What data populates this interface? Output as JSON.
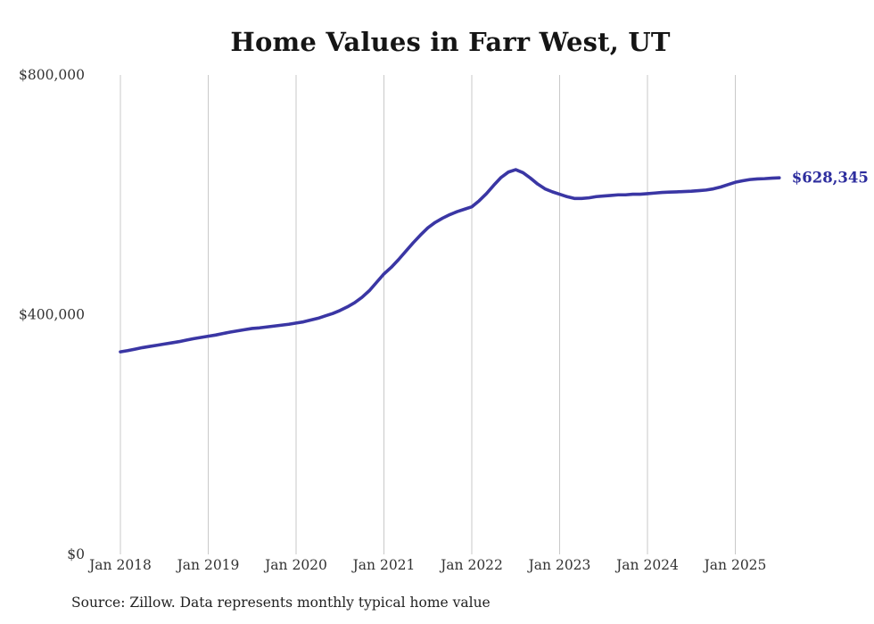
{
  "title": "Home Values in Farr West, UT",
  "source_note": "Source: Zillow. Data represents monthly typical home value",
  "colors": {
    "line": "#3a36a4",
    "end_label": "#2d2d9e",
    "grid": "#c9c9c9",
    "axis_text": "#333333",
    "title_text": "#151515",
    "background": "#ffffff"
  },
  "chart_data": {
    "type": "line",
    "title": "Home Values in Farr West, UT",
    "xlabel": "",
    "ylabel": "",
    "legend": "none",
    "grid": "vertical-yearly",
    "ylim": [
      0,
      800000
    ],
    "y_ticks": [
      {
        "value": 0,
        "label": "$0"
      },
      {
        "value": 400000,
        "label": "$400,000"
      },
      {
        "value": 800000,
        "label": "$800,000"
      }
    ],
    "x_tick_labels": [
      "Jan 2018",
      "Jan 2019",
      "Jan 2020",
      "Jan 2021",
      "Jan 2022",
      "Jan 2023",
      "Jan 2024",
      "Jan 2025"
    ],
    "series_name": "Typical home value (monthly)",
    "x_start_month": "Jan 2018",
    "x_end_month": "Jul 2025",
    "values": [
      338000,
      340000,
      342500,
      345000,
      347000,
      349000,
      351000,
      353000,
      355000,
      357500,
      360000,
      362000,
      364000,
      366000,
      368500,
      371000,
      373000,
      375000,
      377000,
      378000,
      379500,
      381000,
      382500,
      384000,
      386000,
      388000,
      391000,
      394000,
      398000,
      402000,
      407000,
      413000,
      420000,
      429000,
      440000,
      454000,
      468000,
      479000,
      492000,
      506000,
      520000,
      533000,
      545000,
      554000,
      561000,
      567000,
      572000,
      576000,
      580000,
      590000,
      602000,
      616000,
      629000,
      638000,
      642000,
      637000,
      628000,
      618000,
      610000,
      605000,
      601000,
      597000,
      594000,
      594000,
      595000,
      597000,
      598000,
      599000,
      600000,
      600000,
      601000,
      601000,
      602000,
      603000,
      604000,
      604500,
      605000,
      605500,
      606000,
      607000,
      608000,
      610000,
      613000,
      617000,
      621000,
      623500,
      625500,
      626500,
      627000,
      627800,
      628345
    ],
    "final_value": 628345,
    "final_label": "$628,345"
  }
}
